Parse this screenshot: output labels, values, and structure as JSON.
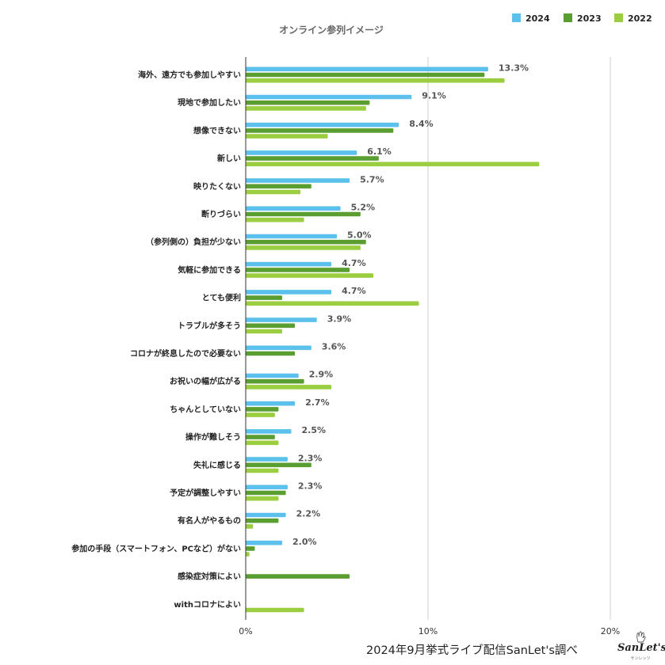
{
  "chart_data": {
    "type": "bar",
    "orientation": "horizontal",
    "title": "オンライン参列イメージ",
    "categories": [
      "海外、遠方でも参加しやすい",
      "現地で参加したい",
      "想像できない",
      "新しい",
      "映りたくない",
      "断りづらい",
      "（参列側の）負担が少ない",
      "気軽に参加できる",
      "とても便利",
      "トラブルが多そう",
      "コロナが終息したので必要ない",
      "お祝いの幅が広がる",
      "ちゃんとしていない",
      "操作が難しそう",
      "失礼に感じる",
      "予定が調整しやすい",
      "有名人がやるもの",
      "参加の手段（スマートフォン、PCなど）がない",
      "感染症対策によい",
      "withコロナによい"
    ],
    "series": [
      {
        "name": "2024",
        "color": "#5bc0eb",
        "values": [
          13.3,
          9.1,
          8.4,
          6.1,
          5.7,
          5.2,
          5.0,
          4.7,
          4.7,
          3.9,
          3.6,
          2.9,
          2.7,
          2.5,
          2.3,
          2.3,
          2.2,
          2.0,
          0,
          0
        ]
      },
      {
        "name": "2023",
        "color": "#5a9e32",
        "values": [
          13.1,
          6.8,
          8.1,
          7.3,
          3.6,
          6.3,
          6.6,
          5.7,
          2.0,
          2.7,
          2.7,
          3.2,
          1.8,
          1.6,
          3.6,
          2.2,
          1.8,
          0.5,
          5.7,
          0
        ]
      },
      {
        "name": "2022",
        "color": "#9acd40",
        "values": [
          14.2,
          6.6,
          4.5,
          16.1,
          3.0,
          3.2,
          6.3,
          7.0,
          9.5,
          2.0,
          0,
          4.7,
          1.6,
          1.8,
          1.8,
          1.8,
          0.4,
          0.2,
          0,
          3.2
        ]
      }
    ],
    "value_labels": [
      "13.3%",
      "9.1%",
      "8.4%",
      "6.1%",
      "5.7%",
      "5.2%",
      "5.0%",
      "4.7%",
      "4.7%",
      "3.9%",
      "3.6%",
      "2.9%",
      "2.7%",
      "2.5%",
      "2.3%",
      "2.3%",
      "2.2%",
      "2.0%",
      "",
      ""
    ],
    "x_ticks": [
      "0%",
      "10%",
      "20%"
    ],
    "xlim": [
      0,
      20
    ],
    "grid": true,
    "legend_position": "top-right"
  },
  "source_note": "2024年9月挙式ライブ配信SanLet's調べ",
  "logo": {
    "text": "SanLet's",
    "subtext": "サンレッツ"
  }
}
